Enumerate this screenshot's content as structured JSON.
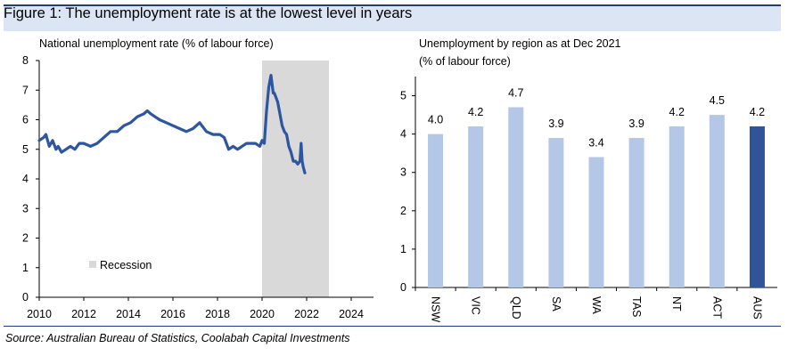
{
  "figure_title": "Figure 1: The unemployment rate is at the lowest level in years",
  "source": "Source: Australian Bureau of Statistics, Coolabah Capital Investments",
  "colors": {
    "header_bg": "#dbe5f3",
    "header_rule": "#1f3f7a",
    "line": "#2e55a0",
    "recession": "#d9d9d9",
    "bar_light": "#b4c7e7",
    "bar_dark": "#2f5597"
  },
  "chart_data": [
    {
      "type": "line",
      "title": "National unemployment rate (% of labour force)",
      "xlabel": "",
      "ylabel": "% of labour force",
      "xlim": [
        2010,
        2025
      ],
      "ylim": [
        0,
        8
      ],
      "x_ticks": [
        "2010",
        "2012",
        "2014",
        "2016",
        "2018",
        "2020",
        "2022",
        "2024"
      ],
      "y_ticks": [
        "0",
        "1",
        "2",
        "3",
        "4",
        "5",
        "6",
        "7",
        "8"
      ],
      "legend": {
        "label": "Recession",
        "position": "lower-center"
      },
      "shaded_region": {
        "label": "Recession",
        "start": 2020.0,
        "end": 2023.0
      },
      "series": [
        {
          "name": "Unemployment rate",
          "x": [
            2010.0,
            2010.2,
            2010.3,
            2010.45,
            2010.6,
            2010.75,
            2010.85,
            2011.0,
            2011.2,
            2011.4,
            2011.6,
            2011.8,
            2012.0,
            2012.3,
            2012.6,
            2012.9,
            2013.2,
            2013.5,
            2013.8,
            2014.1,
            2014.4,
            2014.7,
            2014.85,
            2015.0,
            2015.2,
            2015.4,
            2015.7,
            2016.0,
            2016.3,
            2016.6,
            2016.9,
            2017.2,
            2017.5,
            2017.8,
            2018.1,
            2018.3,
            2018.5,
            2018.7,
            2018.9,
            2019.1,
            2019.3,
            2019.5,
            2019.7,
            2019.9,
            2020.0,
            2020.1,
            2020.2,
            2020.3,
            2020.4,
            2020.5,
            2020.55,
            2020.6,
            2020.7,
            2020.8,
            2020.9,
            2021.0,
            2021.1,
            2021.2,
            2021.3,
            2021.4,
            2021.5,
            2021.6,
            2021.7,
            2021.75,
            2021.8,
            2021.85,
            2021.92
          ],
          "y": [
            5.3,
            5.4,
            5.5,
            5.1,
            5.3,
            5.0,
            5.1,
            4.9,
            5.0,
            5.1,
            5.0,
            5.2,
            5.2,
            5.1,
            5.2,
            5.4,
            5.6,
            5.6,
            5.8,
            5.9,
            6.1,
            6.2,
            6.3,
            6.2,
            6.1,
            6.0,
            5.9,
            5.8,
            5.7,
            5.6,
            5.7,
            5.9,
            5.6,
            5.5,
            5.5,
            5.4,
            5.0,
            5.1,
            5.0,
            5.1,
            5.2,
            5.2,
            5.2,
            5.1,
            5.3,
            5.2,
            6.3,
            7.1,
            7.5,
            6.9,
            6.9,
            6.8,
            6.6,
            6.2,
            5.8,
            5.6,
            5.5,
            5.1,
            4.9,
            4.6,
            4.6,
            4.5,
            4.6,
            5.2,
            4.6,
            4.4,
            4.2
          ]
        }
      ]
    },
    {
      "type": "bar",
      "title": "Unemployment by region as at Dec 2021",
      "subtitle": "(% of labour force)",
      "xlabel": "",
      "ylabel": "% of labour force",
      "ylim": [
        0,
        5.5
      ],
      "y_ticks": [
        "0",
        "1",
        "2",
        "3",
        "4",
        "5"
      ],
      "categories": [
        "NSW",
        "VIC",
        "QLD",
        "SA",
        "WA",
        "TAS",
        "NT",
        "ACT",
        "AUS"
      ],
      "values": [
        4.0,
        4.2,
        4.7,
        3.9,
        3.4,
        3.9,
        4.2,
        4.5,
        4.2
      ],
      "value_labels": [
        "4.0",
        "4.2",
        "4.7",
        "3.9",
        "3.4",
        "3.9",
        "4.2",
        "4.5",
        "4.2"
      ],
      "highlight_category": "AUS"
    }
  ]
}
